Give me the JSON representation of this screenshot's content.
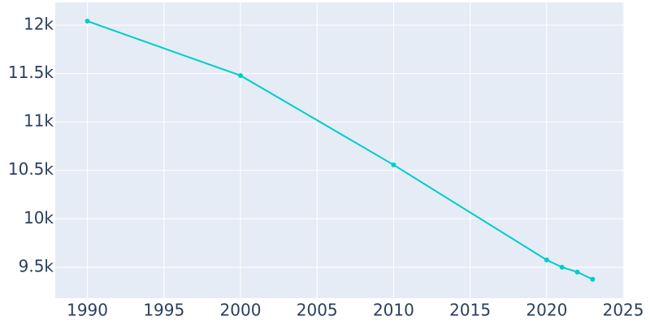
{
  "chart_data": {
    "type": "line",
    "x": [
      1990,
      2000,
      2010,
      2020,
      2021,
      2022,
      2023
    ],
    "series": [
      {
        "color": "#00cccc",
        "values": [
          12042,
          11480,
          10557,
          9575,
          9500,
          9450,
          9375
        ]
      }
    ],
    "xlim": [
      1987.9,
      2025.05
    ],
    "xticks": [
      1990,
      1995,
      2000,
      2005,
      2010,
      2015,
      2020,
      2025
    ],
    "ylim": [
      9180,
      12235
    ],
    "yticks": [
      {
        "value": 9500,
        "label": "9.5k"
      },
      {
        "value": 10000,
        "label": "10k"
      },
      {
        "value": 10500,
        "label": "10.5k"
      },
      {
        "value": 11000,
        "label": "11k"
      },
      {
        "value": 11500,
        "label": "11.5k"
      },
      {
        "value": 12000,
        "label": "12k"
      }
    ],
    "grid": true
  }
}
